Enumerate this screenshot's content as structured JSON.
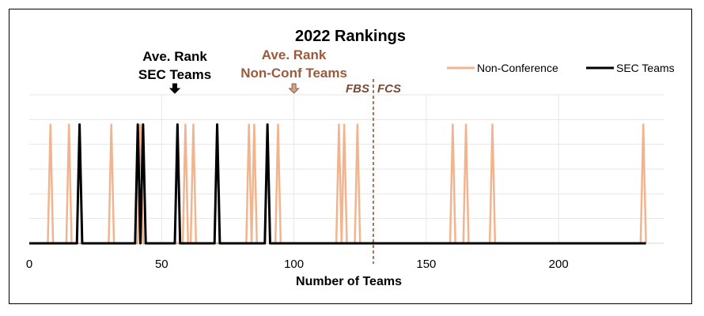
{
  "chart_data": {
    "type": "line",
    "title": "2022 Rankings",
    "xlabel": "Number of Teams",
    "ylabel": "",
    "xlim": [
      0,
      240
    ],
    "ylim": [
      0,
      1.25
    ],
    "x_ticks": [
      0,
      50,
      100,
      150,
      200
    ],
    "grid": true,
    "legend_position": "top-right",
    "series": [
      {
        "name": "Non-Conference",
        "color": "#f2b48e",
        "spikes_at_rank": [
          8,
          15,
          31,
          42,
          59,
          62,
          83,
          85,
          90,
          94,
          117,
          119,
          124,
          160,
          165,
          175,
          232
        ]
      },
      {
        "name": "SEC Teams",
        "color": "#000000",
        "spikes_at_rank": [
          19,
          41,
          43,
          56,
          71,
          90
        ]
      }
    ],
    "annotations": [
      {
        "id": "sec_avg",
        "line1": "Ave. Rank",
        "line2": "SEC Teams",
        "x": 55,
        "color": "#000000"
      },
      {
        "id": "nonconf_avg",
        "line1": "Ave. Rank",
        "line2": "Non-Conf Teams",
        "x": 100,
        "color": "#9b5a3c"
      }
    ],
    "divider": {
      "x": 130,
      "left_label": "FBS",
      "right_label": "FCS",
      "color": "#8b4a2b"
    }
  }
}
